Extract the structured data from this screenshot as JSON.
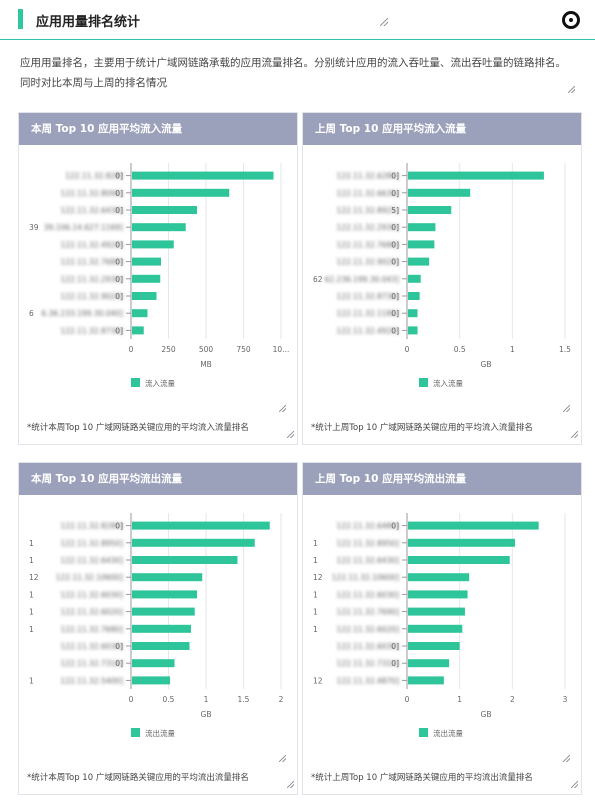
{
  "header": {
    "title": "应用用量排名统计",
    "description": "应用用量排名，主要用于统计广域网链路承载的应用流量排名。分别统计应用的流入吞吐量、流出吞吐量的链路排名。同时对比本周与上周的排名情况"
  },
  "colors": {
    "bar": "#2ec59a",
    "header_bg": "#9ca1bb",
    "accent": "#2fc7a0"
  },
  "chart_data": [
    {
      "type": "bar",
      "orientation": "horizontal",
      "title": "本周 Top 10 应用平均流入流量",
      "footnote": "*统计本周Top 10 广域网链路关键应用的平均流入流量排名",
      "categories": [
        "122.11.32.828]",
        "122.11.32.8090]",
        "122.11.32.6430]",
        "39.106.14.627.1169]",
        "122.11.32.4920]",
        "122.11.32.7680]",
        "122.11.32.2930]",
        "122.11.32.9020]",
        "6.36.233.199.30.040]",
        "122.11.32.8730]"
      ],
      "category_visible": [
        "0]",
        "0]",
        "0]",
        "39",
        "0]",
        "0]",
        "0]",
        "0]",
        "6",
        "0]"
      ],
      "xticks": [
        "0",
        "250",
        "500",
        "750",
        "10..."
      ],
      "xlabel": "MB",
      "xlim": [
        0,
        1000
      ],
      "legend": "流入流量",
      "legend_position": "bottom",
      "series": [
        {
          "name": "流入流量",
          "values": [
            950,
            655,
            440,
            365,
            285,
            200,
            195,
            170,
            110,
            85
          ]
        }
      ]
    },
    {
      "type": "bar",
      "orientation": "horizontal",
      "title": "上周 Top 10 应用平均流入流量",
      "footnote": "*统计上周Top 10 广域网链路关键应用的平均流入流量排名",
      "categories": [
        "122.11.32.6280]",
        "122.11.32.6630]",
        "122.11.32.8925]",
        "122.11.32.2930]",
        "122.11.32.7680]",
        "122.11.32.9020]",
        "62.236.199.30.043]",
        "122.11.32.8730]",
        "122.11.32.1180]",
        "122.11.32.4920]"
      ],
      "category_visible": [
        "0]",
        "0]",
        "5]",
        "0]",
        "0]",
        "0]",
        "62",
        "0]",
        "0]",
        "0]"
      ],
      "xticks": [
        "0",
        "0.5",
        "1",
        "1.5"
      ],
      "xlabel": "GB",
      "xlim": [
        0,
        1.5
      ],
      "legend": "流入流量",
      "legend_position": "bottom",
      "series": [
        {
          "name": "流入流量",
          "values": [
            1.3,
            0.6,
            0.42,
            0.27,
            0.26,
            0.21,
            0.13,
            0.12,
            0.1,
            0.1
          ]
        }
      ]
    },
    {
      "type": "bar",
      "orientation": "horizontal",
      "title": "本周 Top 10 应用平均流出流量",
      "footnote": "*统计本周Top 10 广域网链路关键应用的平均流出流量排名",
      "categories": [
        "122.11.32.8280]",
        "122.11.32.8950]",
        "122.11.32.6430]",
        "122.11.32.10600]",
        "122.11.32.6030]",
        "122.11.32.6020]",
        "122.11.32.7680]",
        "122.11.32.6030]",
        "122.11.32.7310]",
        "122.11.32.5400]"
      ],
      "category_visible": [
        "0]",
        "1",
        "1",
        "12",
        "1",
        "1",
        "1",
        "0]",
        "0]",
        "1"
      ],
      "xticks": [
        "0",
        "0.5",
        "1",
        "1.5",
        "2"
      ],
      "xlabel": "GB",
      "xlim": [
        0,
        2
      ],
      "legend": "流出流量",
      "legend_position": "bottom",
      "series": [
        {
          "name": "流出流量",
          "values": [
            1.85,
            1.65,
            1.42,
            0.95,
            0.88,
            0.85,
            0.8,
            0.78,
            0.58,
            0.52
          ]
        }
      ]
    },
    {
      "type": "bar",
      "orientation": "horizontal",
      "title": "上周 Top 10 应用平均流出流量",
      "footnote": "*统计上周Top 10 广域网链路关键应用的平均流出流量排名",
      "categories": [
        "122.11.32.6480]",
        "122.11.32.8950]",
        "122.11.32.6430]",
        "122.11.32.10600]",
        "122.11.32.6030]",
        "122.11.32.7690]",
        "122.11.32.6020]",
        "122.11.32.6030]",
        "122.11.32.7310]",
        "122.11.32.4870]"
      ],
      "category_visible": [
        "0]",
        "1",
        "1",
        "12",
        "1",
        "1",
        "1",
        "0]",
        "0]",
        "12"
      ],
      "xticks": [
        "0",
        "1",
        "2",
        "3"
      ],
      "xlabel": "GB",
      "xlim": [
        0,
        3
      ],
      "legend": "流出流量",
      "legend_position": "bottom",
      "series": [
        {
          "name": "流出流量",
          "values": [
            2.5,
            2.05,
            1.95,
            1.18,
            1.15,
            1.1,
            1.05,
            1.0,
            0.8,
            0.7
          ]
        }
      ]
    }
  ]
}
